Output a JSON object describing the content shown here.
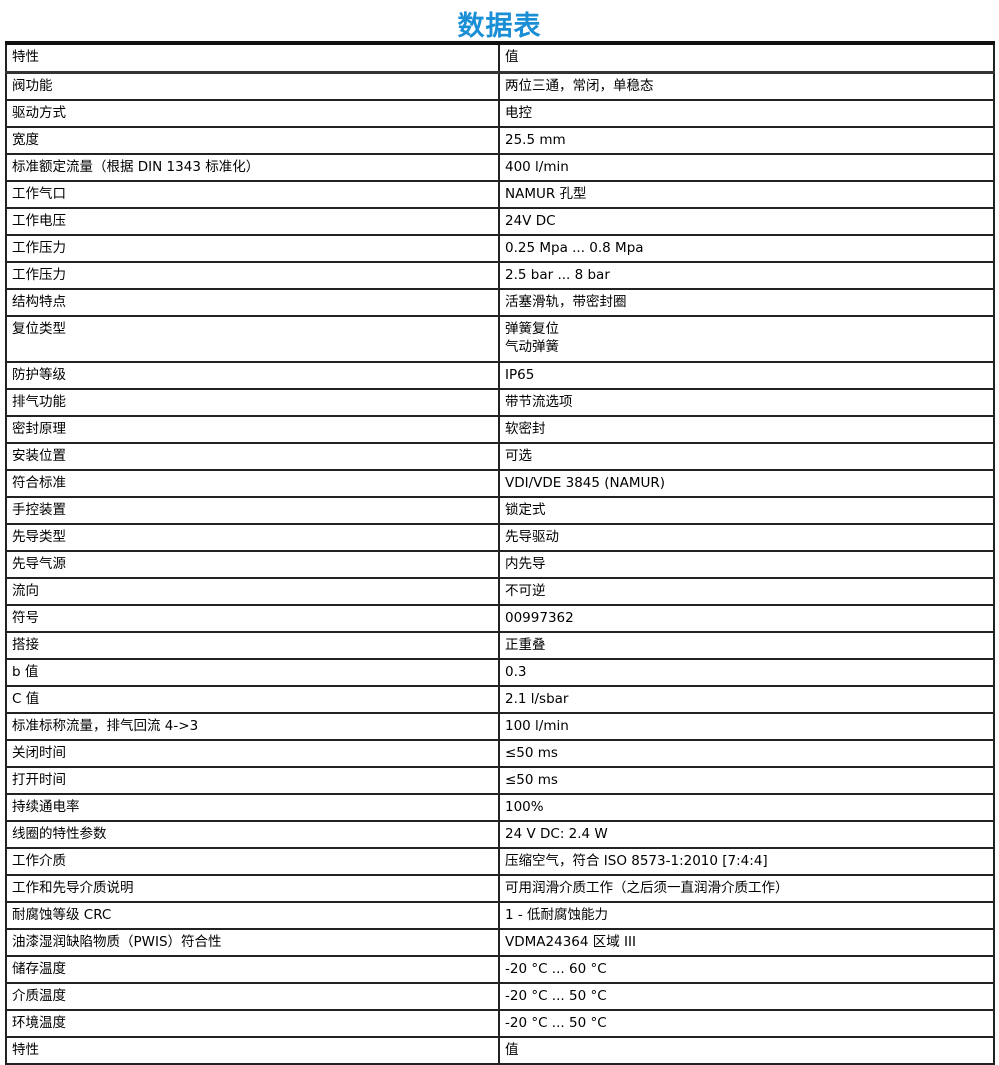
{
  "title": "数据表",
  "title_color": "#1a8fd6",
  "header": {
    "property": "特性",
    "value": "值"
  },
  "rows": [
    {
      "property": "阀功能",
      "value": "两位三通，常闭，单稳态"
    },
    {
      "property": "驱动方式",
      "value": "电控"
    },
    {
      "property": "宽度",
      "value": "25.5 mm"
    },
    {
      "property": "标准额定流量（根据 DIN 1343 标准化）",
      "value": "400 l/min"
    },
    {
      "property": "工作气口",
      "value": "NAMUR 孔型"
    },
    {
      "property": "工作电压",
      "value": "24V DC"
    },
    {
      "property": "工作压力",
      "value": "0.25 Mpa ... 0.8 Mpa"
    },
    {
      "property": "工作压力",
      "value": "2.5 bar ... 8 bar"
    },
    {
      "property": "结构特点",
      "value": "活塞滑轨，带密封圈"
    },
    {
      "property": "复位类型",
      "value": "弹簧复位",
      "value2": "气动弹簧"
    },
    {
      "property": "防护等级",
      "value": "IP65"
    },
    {
      "property": "排气功能",
      "value": "带节流选项"
    },
    {
      "property": "密封原理",
      "value": "软密封"
    },
    {
      "property": "安装位置",
      "value": "可选"
    },
    {
      "property": "符合标准",
      "value": "VDI/VDE 3845 (NAMUR)"
    },
    {
      "property": "手控装置",
      "value": "锁定式"
    },
    {
      "property": "先导类型",
      "value": "先导驱动"
    },
    {
      "property": "先导气源",
      "value": "内先导"
    },
    {
      "property": "流向",
      "value": "不可逆"
    },
    {
      "property": "符号",
      "value": "00997362"
    },
    {
      "property": "搭接",
      "value": "正重叠"
    },
    {
      "property": "b 值",
      "value": "0.3"
    },
    {
      "property": "C 值",
      "value": "2.1 l/sbar"
    },
    {
      "property": "标准标称流量，排气回流 4->3",
      "value": "100 l/min"
    },
    {
      "property": "关闭时间",
      "value": "≤50 ms"
    },
    {
      "property": "打开时间",
      "value": "≤50 ms"
    },
    {
      "property": "持续通电率",
      "value": "100%"
    },
    {
      "property": "线圈的特性参数",
      "value": "24 V DC: 2.4 W"
    },
    {
      "property": "工作介质",
      "value": "压缩空气，符合 ISO 8573-1:2010 [7:4:4]"
    },
    {
      "property": "工作和先导介质说明",
      "value": "可用润滑介质工作（之后须一直润滑介质工作）"
    },
    {
      "property": "耐腐蚀等级 CRC",
      "value": "1 - 低耐腐蚀能力"
    },
    {
      "property": "油漆湿润缺陷物质（PWIS）符合性",
      "value": "VDMA24364 区域 III"
    },
    {
      "property": "储存温度",
      "value": "-20 °C ... 60 °C"
    },
    {
      "property": "介质温度",
      "value": "-20 °C ... 50 °C"
    },
    {
      "property": "环境温度",
      "value": "-20 °C ... 50 °C"
    }
  ],
  "footer": {
    "property": "特性",
    "value": "值"
  }
}
